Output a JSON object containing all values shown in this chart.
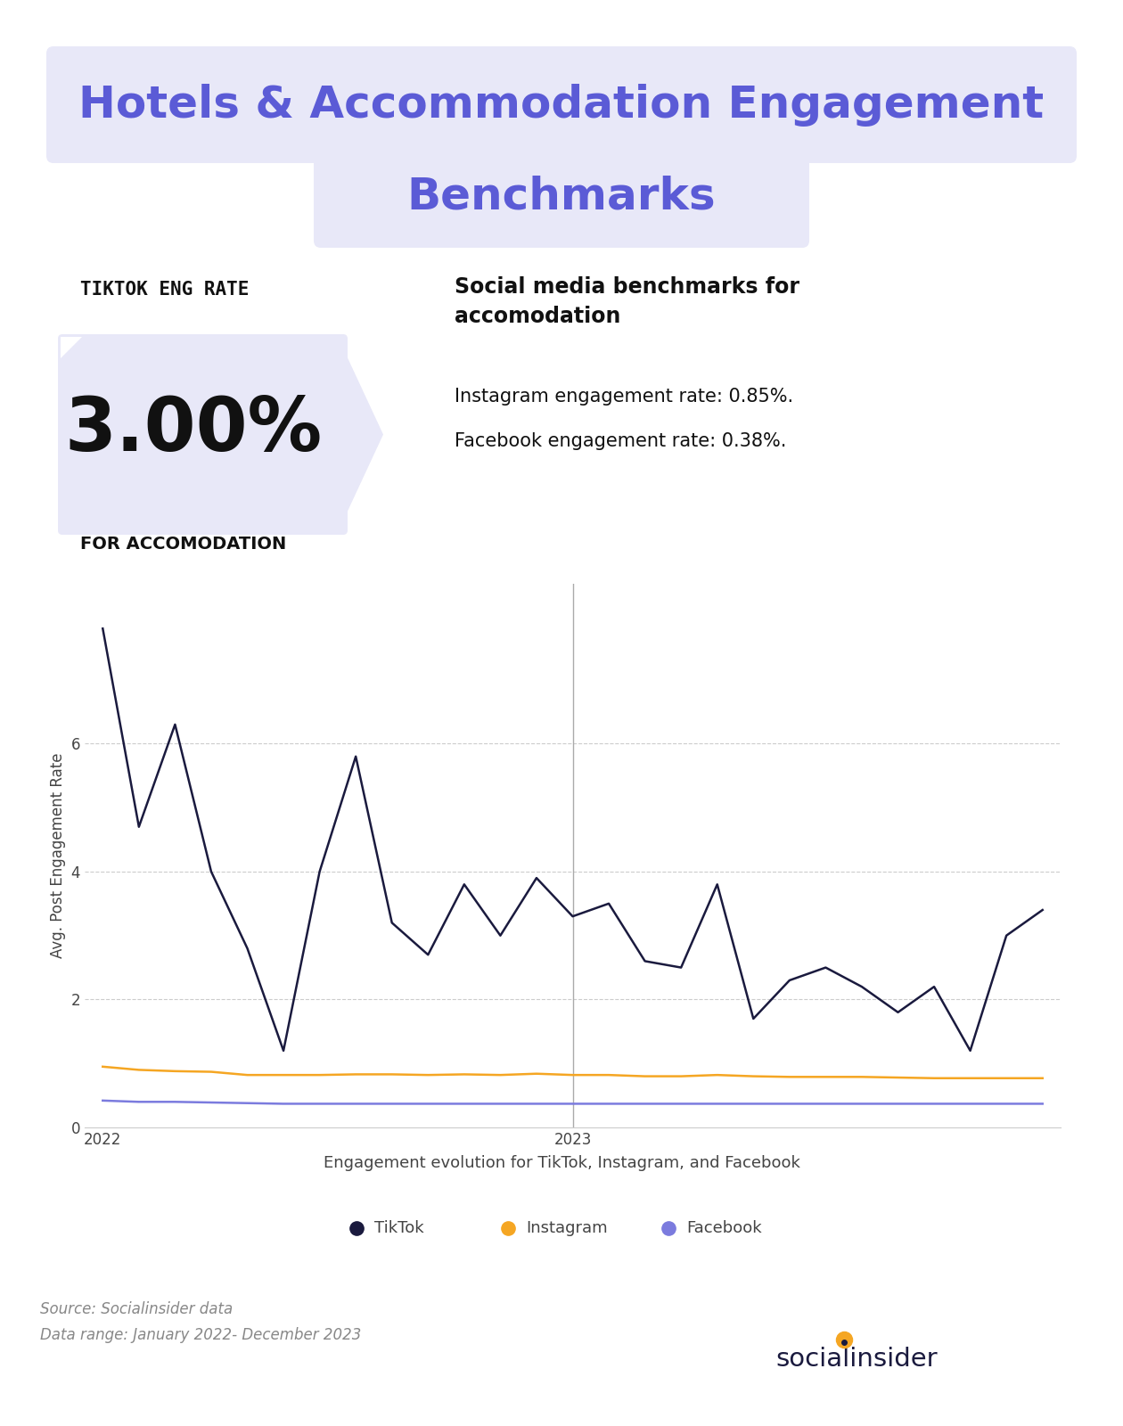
{
  "title_line1": "Hotels & Accommodation Engagement",
  "title_line2": "Benchmarks",
  "title_color": "#5b5bd6",
  "title_bg_color": "#e8e8f8",
  "tiktok_rate": "3.00%",
  "tiktok_label": "TIKTOK ENG RATE",
  "tiktok_sub": "FOR ACCOMODATION",
  "social_title": "Social media benchmarks for\naccomodation",
  "social_lines": [
    "Instagram engagement rate: 0.85%.",
    "Facebook engagement rate: 0.38%."
  ],
  "tiktok_data": [
    7.8,
    4.7,
    6.3,
    4.0,
    2.8,
    1.2,
    4.0,
    5.8,
    3.2,
    2.7,
    3.8,
    3.0,
    3.9,
    3.3,
    3.5,
    2.6,
    2.5,
    3.8,
    1.7,
    2.3,
    2.5,
    2.2,
    1.8,
    2.2,
    1.2,
    3.0,
    3.4
  ],
  "instagram_data": [
    0.95,
    0.9,
    0.88,
    0.87,
    0.82,
    0.82,
    0.82,
    0.83,
    0.83,
    0.82,
    0.83,
    0.82,
    0.84,
    0.82,
    0.82,
    0.8,
    0.8,
    0.82,
    0.8,
    0.79,
    0.79,
    0.79,
    0.78,
    0.77,
    0.77,
    0.77,
    0.77
  ],
  "facebook_data": [
    0.42,
    0.4,
    0.4,
    0.39,
    0.38,
    0.37,
    0.37,
    0.37,
    0.37,
    0.37,
    0.37,
    0.37,
    0.37,
    0.37,
    0.37,
    0.37,
    0.37,
    0.37,
    0.37,
    0.37,
    0.37,
    0.37,
    0.37,
    0.37,
    0.37,
    0.37,
    0.37
  ],
  "tiktok_color": "#1a1a3e",
  "instagram_color": "#f5a623",
  "facebook_color": "#7b7bde",
  "ylabel": "Avg. Post Engagement Rate",
  "xlabel_caption": "Engagement evolution for TikTok, Instagram, and Facebook",
  "ylim": [
    0,
    8.5
  ],
  "yticks": [
    0,
    2,
    4,
    6
  ],
  "xtick_2022_idx": 0,
  "xtick_2023_idx": 13,
  "vline_idx": 13,
  "source_text": "Source: Socialinsider data\nData range: January 2022- December 2023",
  "bg_color": "#ffffff",
  "grid_color": "#cccccc"
}
